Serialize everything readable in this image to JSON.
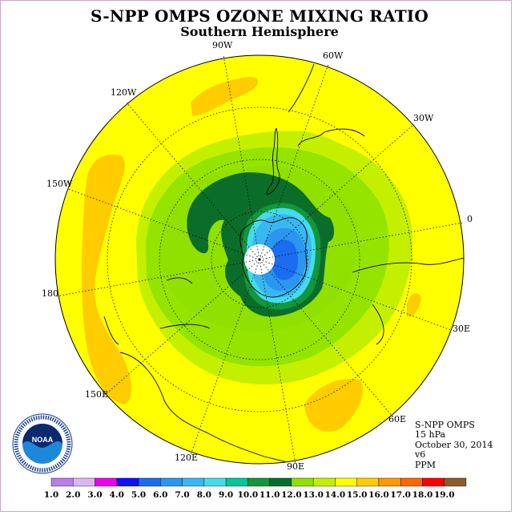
{
  "title": "S-NPP OMPS OZONE MIXING RATIO",
  "subtitle": "Southern Hemisphere",
  "longitude_labels": {
    "w90": "90W",
    "w60": "60W",
    "w30": "30W",
    "w120": "120W",
    "w150": "150W",
    "zero": "0",
    "e180": "180",
    "e30": "30E",
    "e150": "150E",
    "e60": "60E",
    "e120": "120E",
    "e90": "90E"
  },
  "info": {
    "instrument": "S-NPP OMPS",
    "level": "15 hPa",
    "date": "October 30, 2014",
    "version": "v6",
    "units": "PPM"
  },
  "logo": {
    "text": "NOAA",
    "icon": "noaa-logo"
  },
  "colorbar": {
    "ticks": [
      "1.0",
      "2.0",
      "3.0",
      "4.0",
      "5.0",
      "6.0",
      "7.0",
      "8.0",
      "9.0",
      "10.0",
      "11.0",
      "12.0",
      "13.0",
      "14.0",
      "15.0",
      "16.0",
      "17.0",
      "18.0",
      "19.0"
    ],
    "colors": [
      "#b87ee6",
      "#dcb6f2",
      "#ee00ee",
      "#1010ff",
      "#1a6cf0",
      "#2a96f0",
      "#38b8f0",
      "#44dced",
      "#00c896",
      "#14963c",
      "#0a6e2a",
      "#90e000",
      "#c4f000",
      "#ffff00",
      "#ffcc00",
      "#ff9900",
      "#ff6600",
      "#ff0000",
      "#8b5a2b"
    ]
  }
}
